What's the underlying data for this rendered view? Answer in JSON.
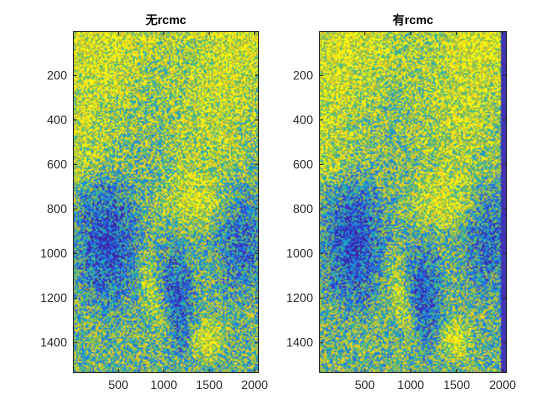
{
  "chart_data": [
    {
      "type": "heatmap",
      "title": "无rcmc",
      "xlabel": "",
      "ylabel": "",
      "xlim": [
        1,
        2048
      ],
      "ylim": [
        1,
        1536
      ],
      "y_reversed": true,
      "xticks": [
        500,
        1000,
        1500,
        2000
      ],
      "yticks": [
        200,
        400,
        600,
        800,
        1000,
        1200,
        1400
      ],
      "xtick_labels": [
        "500",
        "1000",
        "1500",
        "2000"
      ],
      "ytick_labels": [
        "200",
        "400",
        "600",
        "800",
        "1000",
        "1200",
        "1400"
      ],
      "colormap": "parula",
      "colors": {
        "low": "#3e26a8",
        "mid_low": "#1f77d6",
        "mid": "#2ab6a4",
        "mid_high": "#a5be2c",
        "high": "#f9fb0e"
      },
      "grid": false,
      "right_edge_dark_band": false
    },
    {
      "type": "heatmap",
      "title": "有rcmc",
      "xlabel": "",
      "ylabel": "",
      "xlim": [
        1,
        2048
      ],
      "ylim": [
        1,
        1536
      ],
      "y_reversed": true,
      "xticks": [
        500,
        1000,
        1500,
        2000
      ],
      "yticks": [
        200,
        400,
        600,
        800,
        1000,
        1200,
        1400
      ],
      "xtick_labels": [
        "500",
        "1000",
        "1500",
        "2000"
      ],
      "ytick_labels": [
        "200",
        "400",
        "600",
        "800",
        "1000",
        "1200",
        "1400"
      ],
      "colormap": "parula",
      "colors": {
        "low": "#3e26a8",
        "mid_low": "#1f77d6",
        "mid": "#2ab6a4",
        "mid_high": "#a5be2c",
        "high": "#f9fb0e"
      },
      "grid": false,
      "right_edge_dark_band": true
    }
  ]
}
